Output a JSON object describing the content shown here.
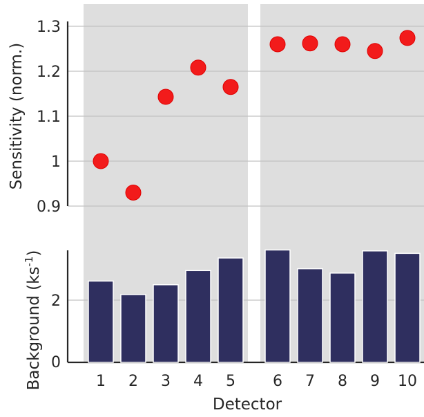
{
  "chart_data": [
    {
      "type": "scatter",
      "ylabel": "Sensitivity (norm.)",
      "ylim": [
        0.9,
        1.3
      ],
      "yticks": [
        "0.9",
        "1",
        "1.1",
        "1.2",
        "1.3"
      ],
      "x": [
        1,
        2,
        3,
        4,
        5,
        6,
        7,
        8,
        9,
        10
      ],
      "values": [
        1.0,
        0.93,
        1.143,
        1.208,
        1.165,
        1.26,
        1.262,
        1.26,
        1.245,
        1.274
      ],
      "grid": true,
      "colors": {
        "marker": "#f21b1b",
        "marker_edge": "#e00000",
        "panel_bg": "#dedede",
        "grid": "#c2c2c2"
      }
    },
    {
      "type": "bar",
      "ylabel_main": "Background (ks",
      "ylabel_sup": "-1",
      "ylabel_end": ")",
      "xlabel": "Detector",
      "categories": [
        "1",
        "2",
        "3",
        "4",
        "5",
        "6",
        "7",
        "8",
        "9",
        "10"
      ],
      "values": [
        2.62,
        2.18,
        2.5,
        2.96,
        3.37,
        3.63,
        3.02,
        2.88,
        3.6,
        3.52
      ],
      "ylim": [
        0,
        3.5
      ],
      "yticks": [
        "0",
        "2"
      ],
      "grid": true,
      "colors": {
        "bar": "#2f2f5f",
        "panel_bg": "#dedede",
        "grid": "#c2c2c2"
      }
    }
  ]
}
